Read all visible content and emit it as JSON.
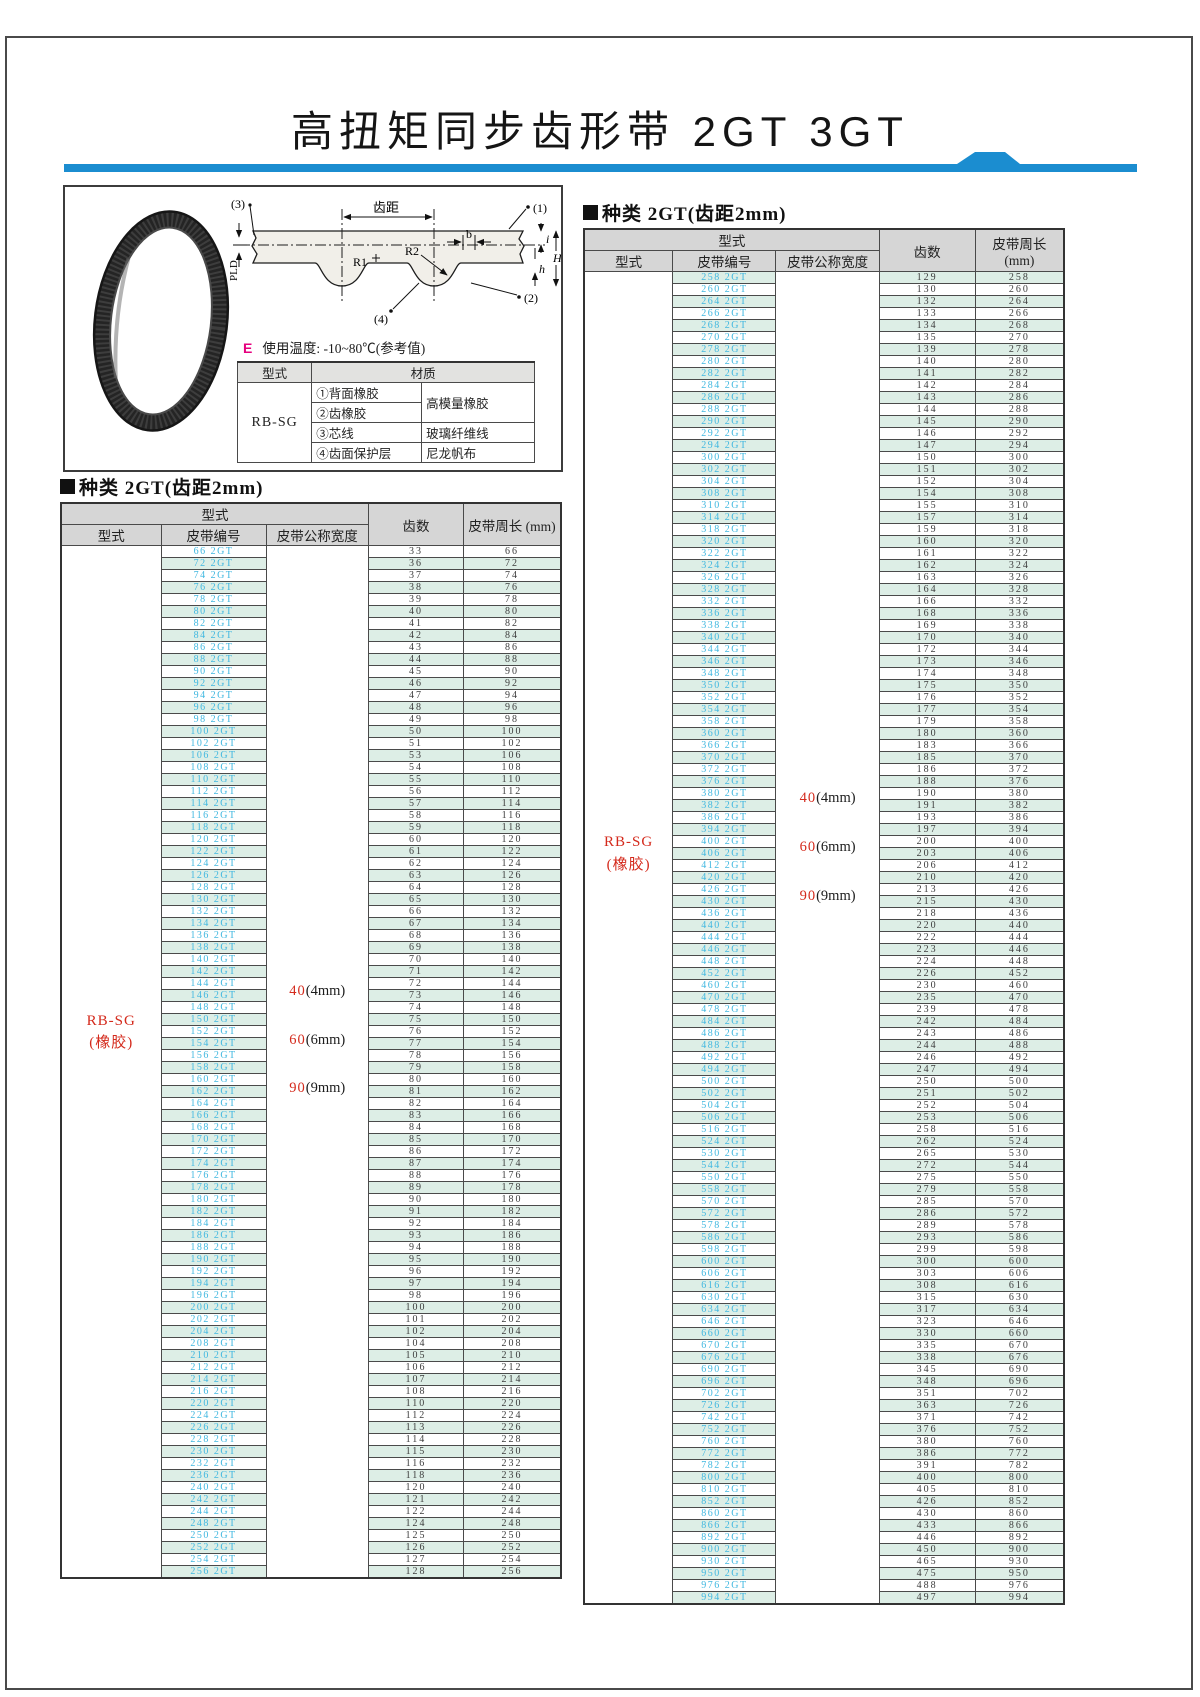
{
  "page": {
    "title": "高扭矩同步齿形带 2GT 3GT"
  },
  "info_panel": {
    "diagram": {
      "labels": {
        "pitch": "齿距",
        "b": "b",
        "r1": "R1",
        "r2": "R2",
        "pld": "PLD",
        "i": "i",
        "h": "h",
        "H": "H",
        "callout1": "(1)",
        "callout2": "(2)",
        "callout3": "(3)",
        "callout4": "(4)"
      }
    },
    "temperature_note": {
      "prefix": "E",
      "text": "使用温度: -10~80℃(参考值)"
    },
    "material_table": {
      "headers": [
        "型式",
        "材质"
      ],
      "model": "RB-SG",
      "rows": [
        {
          "part": "①背面橡胶",
          "material": "高模量橡胶"
        },
        {
          "part": "②齿橡胶"
        },
        {
          "part": "③芯线",
          "material": "玻璃纤维线"
        },
        {
          "part": "④齿面保护层",
          "material": "尼龙帆布"
        }
      ]
    }
  },
  "colors": {
    "accent_blue": "#1b8dd0",
    "belt_number_cyan": "#41b8e0",
    "red_text": "#d42a1c",
    "stripe_mint": "#ddeee6",
    "header_gray": "#d6d6d6"
  },
  "tables": [
    {
      "section_title": "种类 2GT(齿距2mm)",
      "headers": {
        "group": "型式",
        "type": "型式",
        "belt_no": "皮带编号",
        "width": "皮带公称宽度",
        "teeth": "齿数",
        "length": "皮带周长 (mm)"
      },
      "model_label": {
        "line1": "RB-SG",
        "line2": "(橡胶)"
      },
      "width_options": [
        {
          "value": "40",
          "unit": "(4mm)"
        },
        {
          "value": "60",
          "unit": "(6mm)"
        },
        {
          "value": "90",
          "unit": "(9mm)"
        }
      ],
      "belt_suffix": "2GT",
      "rows": [
        [
          66,
          33,
          66
        ],
        [
          72,
          36,
          72
        ],
        [
          74,
          37,
          74
        ],
        [
          76,
          38,
          76
        ],
        [
          78,
          39,
          78
        ],
        [
          80,
          40,
          80
        ],
        [
          82,
          41,
          82
        ],
        [
          84,
          42,
          84
        ],
        [
          86,
          43,
          86
        ],
        [
          88,
          44,
          88
        ],
        [
          90,
          45,
          90
        ],
        [
          92,
          46,
          92
        ],
        [
          94,
          47,
          94
        ],
        [
          96,
          48,
          96
        ],
        [
          98,
          49,
          98
        ],
        [
          100,
          50,
          100
        ],
        [
          102,
          51,
          102
        ],
        [
          106,
          53,
          106
        ],
        [
          108,
          54,
          108
        ],
        [
          110,
          55,
          110
        ],
        [
          112,
          56,
          112
        ],
        [
          114,
          57,
          114
        ],
        [
          116,
          58,
          116
        ],
        [
          118,
          59,
          118
        ],
        [
          120,
          60,
          120
        ],
        [
          122,
          61,
          122
        ],
        [
          124,
          62,
          124
        ],
        [
          126,
          63,
          126
        ],
        [
          128,
          64,
          128
        ],
        [
          130,
          65,
          130
        ],
        [
          132,
          66,
          132
        ],
        [
          134,
          67,
          134
        ],
        [
          136,
          68,
          136
        ],
        [
          138,
          69,
          138
        ],
        [
          140,
          70,
          140
        ],
        [
          142,
          71,
          142
        ],
        [
          144,
          72,
          144
        ],
        [
          146,
          73,
          146
        ],
        [
          148,
          74,
          148
        ],
        [
          150,
          75,
          150
        ],
        [
          152,
          76,
          152
        ],
        [
          154,
          77,
          154
        ],
        [
          156,
          78,
          156
        ],
        [
          158,
          79,
          158
        ],
        [
          160,
          80,
          160
        ],
        [
          162,
          81,
          162
        ],
        [
          164,
          82,
          164
        ],
        [
          166,
          83,
          166
        ],
        [
          168,
          84,
          168
        ],
        [
          170,
          85,
          170
        ],
        [
          172,
          86,
          172
        ],
        [
          174,
          87,
          174
        ],
        [
          176,
          88,
          176
        ],
        [
          178,
          89,
          178
        ],
        [
          180,
          90,
          180
        ],
        [
          182,
          91,
          182
        ],
        [
          184,
          92,
          184
        ],
        [
          186,
          93,
          186
        ],
        [
          188,
          94,
          188
        ],
        [
          190,
          95,
          190
        ],
        [
          192,
          96,
          192
        ],
        [
          194,
          97,
          194
        ],
        [
          196,
          98,
          196
        ],
        [
          200,
          100,
          200
        ],
        [
          202,
          101,
          202
        ],
        [
          204,
          102,
          204
        ],
        [
          208,
          104,
          208
        ],
        [
          210,
          105,
          210
        ],
        [
          212,
          106,
          212
        ],
        [
          214,
          107,
          214
        ],
        [
          216,
          108,
          216
        ],
        [
          220,
          110,
          220
        ],
        [
          224,
          112,
          224
        ],
        [
          226,
          113,
          226
        ],
        [
          228,
          114,
          228
        ],
        [
          230,
          115,
          230
        ],
        [
          232,
          116,
          232
        ],
        [
          236,
          118,
          236
        ],
        [
          240,
          120,
          240
        ],
        [
          242,
          121,
          242
        ],
        [
          244,
          122,
          244
        ],
        [
          248,
          124,
          248
        ],
        [
          250,
          125,
          250
        ],
        [
          252,
          126,
          252
        ],
        [
          254,
          127,
          254
        ],
        [
          256,
          128,
          256
        ]
      ]
    },
    {
      "section_title": "种类 2GT(齿距2mm)",
      "headers": {
        "group": "型式",
        "type": "型式",
        "belt_no": "皮带编号",
        "width": "皮带公称宽度",
        "teeth": "齿数",
        "length": "皮带周长 (mm)"
      },
      "model_label": {
        "line1": "RB-SG",
        "line2": "(橡胶)"
      },
      "width_options": [
        {
          "value": "40",
          "unit": "(4mm)"
        },
        {
          "value": "60",
          "unit": "(6mm)"
        },
        {
          "value": "90",
          "unit": "(9mm)"
        }
      ],
      "belt_suffix": "2GT",
      "rows": [
        [
          258,
          129,
          258
        ],
        [
          260,
          130,
          260
        ],
        [
          264,
          132,
          264
        ],
        [
          266,
          133,
          266
        ],
        [
          268,
          134,
          268
        ],
        [
          270,
          135,
          270
        ],
        [
          278,
          139,
          278
        ],
        [
          280,
          140,
          280
        ],
        [
          282,
          141,
          282
        ],
        [
          284,
          142,
          284
        ],
        [
          286,
          143,
          286
        ],
        [
          288,
          144,
          288
        ],
        [
          290,
          145,
          290
        ],
        [
          292,
          146,
          292
        ],
        [
          294,
          147,
          294
        ],
        [
          300,
          150,
          300
        ],
        [
          302,
          151,
          302
        ],
        [
          304,
          152,
          304
        ],
        [
          308,
          154,
          308
        ],
        [
          310,
          155,
          310
        ],
        [
          314,
          157,
          314
        ],
        [
          318,
          159,
          318
        ],
        [
          320,
          160,
          320
        ],
        [
          322,
          161,
          322
        ],
        [
          324,
          162,
          324
        ],
        [
          326,
          163,
          326
        ],
        [
          328,
          164,
          328
        ],
        [
          332,
          166,
          332
        ],
        [
          336,
          168,
          336
        ],
        [
          338,
          169,
          338
        ],
        [
          340,
          170,
          340
        ],
        [
          344,
          172,
          344
        ],
        [
          346,
          173,
          346
        ],
        [
          348,
          174,
          348
        ],
        [
          350,
          175,
          350
        ],
        [
          352,
          176,
          352
        ],
        [
          354,
          177,
          354
        ],
        [
          358,
          179,
          358
        ],
        [
          360,
          180,
          360
        ],
        [
          366,
          183,
          366
        ],
        [
          370,
          185,
          370
        ],
        [
          372,
          186,
          372
        ],
        [
          376,
          188,
          376
        ],
        [
          380,
          190,
          380
        ],
        [
          382,
          191,
          382
        ],
        [
          386,
          193,
          386
        ],
        [
          394,
          197,
          394
        ],
        [
          400,
          200,
          400
        ],
        [
          406,
          203,
          406
        ],
        [
          412,
          206,
          412
        ],
        [
          420,
          210,
          420
        ],
        [
          426,
          213,
          426
        ],
        [
          430,
          215,
          430
        ],
        [
          436,
          218,
          436
        ],
        [
          440,
          220,
          440
        ],
        [
          444,
          222,
          444
        ],
        [
          446,
          223,
          446
        ],
        [
          448,
          224,
          448
        ],
        [
          452,
          226,
          452
        ],
        [
          460,
          230,
          460
        ],
        [
          470,
          235,
          470
        ],
        [
          478,
          239,
          478
        ],
        [
          484,
          242,
          484
        ],
        [
          486,
          243,
          486
        ],
        [
          488,
          244,
          488
        ],
        [
          492,
          246,
          492
        ],
        [
          494,
          247,
          494
        ],
        [
          500,
          250,
          500
        ],
        [
          502,
          251,
          502
        ],
        [
          504,
          252,
          504
        ],
        [
          506,
          253,
          506
        ],
        [
          516,
          258,
          516
        ],
        [
          524,
          262,
          524
        ],
        [
          530,
          265,
          530
        ],
        [
          544,
          272,
          544
        ],
        [
          550,
          275,
          550
        ],
        [
          558,
          279,
          558
        ],
        [
          570,
          285,
          570
        ],
        [
          572,
          286,
          572
        ],
        [
          578,
          289,
          578
        ],
        [
          586,
          293,
          586
        ],
        [
          598,
          299,
          598
        ],
        [
          600,
          300,
          600
        ],
        [
          606,
          303,
          606
        ],
        [
          616,
          308,
          616
        ],
        [
          630,
          315,
          630
        ],
        [
          634,
          317,
          634
        ],
        [
          646,
          323,
          646
        ],
        [
          660,
          330,
          660
        ],
        [
          670,
          335,
          670
        ],
        [
          676,
          338,
          676
        ],
        [
          690,
          345,
          690
        ],
        [
          696,
          348,
          696
        ],
        [
          702,
          351,
          702
        ],
        [
          726,
          363,
          726
        ],
        [
          742,
          371,
          742
        ],
        [
          752,
          376,
          752
        ],
        [
          760,
          380,
          760
        ],
        [
          772,
          386,
          772
        ],
        [
          782,
          391,
          782
        ],
        [
          800,
          400,
          800
        ],
        [
          810,
          405,
          810
        ],
        [
          852,
          426,
          852
        ],
        [
          860,
          430,
          860
        ],
        [
          866,
          433,
          866
        ],
        [
          892,
          446,
          892
        ],
        [
          900,
          450,
          900
        ],
        [
          930,
          465,
          930
        ],
        [
          950,
          475,
          950
        ],
        [
          976,
          488,
          976
        ],
        [
          994,
          497,
          994
        ]
      ]
    }
  ]
}
